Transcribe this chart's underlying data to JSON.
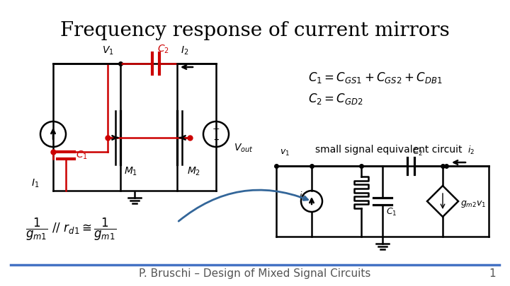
{
  "title": "Frequency response of current mirrors",
  "title_fontsize": 20,
  "footer_text": "P. Bruschi – Design of Mixed Signal Circuits",
  "footer_fontsize": 11,
  "page_number": "1",
  "bg_color": "#ffffff",
  "eq1": "C_1 = C_{GS1} + C_{GS2} + C_{DB1}",
  "eq2": "C_2 = C_{GD2}",
  "small_signal_label": "small signal equivalent circuit",
  "formula_left1": "\\frac{1}{g_{m1}} \\,//\\, r_{d1} \\cong \\frac{1}{g_{m1}}",
  "red_color": "#cc0000",
  "blue_color": "#336699",
  "black_color": "#000000",
  "separator_color": "#4472c4",
  "line_color": "#000000"
}
